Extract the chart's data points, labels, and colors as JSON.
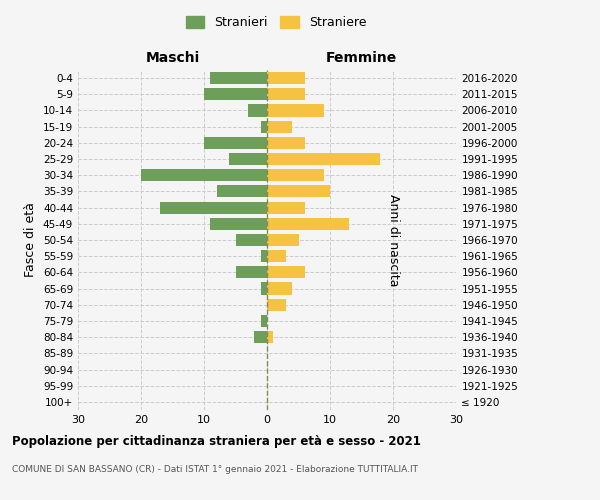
{
  "age_groups": [
    "100+",
    "95-99",
    "90-94",
    "85-89",
    "80-84",
    "75-79",
    "70-74",
    "65-69",
    "60-64",
    "55-59",
    "50-54",
    "45-49",
    "40-44",
    "35-39",
    "30-34",
    "25-29",
    "20-24",
    "15-19",
    "10-14",
    "5-9",
    "0-4"
  ],
  "birth_years": [
    "≤ 1920",
    "1921-1925",
    "1926-1930",
    "1931-1935",
    "1936-1940",
    "1941-1945",
    "1946-1950",
    "1951-1955",
    "1956-1960",
    "1961-1965",
    "1966-1970",
    "1971-1975",
    "1976-1980",
    "1981-1985",
    "1986-1990",
    "1991-1995",
    "1996-2000",
    "2001-2005",
    "2006-2010",
    "2011-2015",
    "2016-2020"
  ],
  "maschi": [
    0,
    0,
    0,
    0,
    2,
    1,
    0,
    1,
    5,
    1,
    5,
    9,
    17,
    8,
    20,
    6,
    10,
    1,
    3,
    10,
    9
  ],
  "femmine": [
    0,
    0,
    0,
    0,
    1,
    0,
    3,
    4,
    6,
    3,
    5,
    13,
    6,
    10,
    9,
    18,
    6,
    4,
    9,
    6,
    6
  ],
  "maschi_color": "#6d9e5a",
  "femmine_color": "#f5c242",
  "background_color": "#f5f5f5",
  "grid_color": "#cccccc",
  "dashed_line_color": "#888855",
  "title": "Popolazione per cittadinanza straniera per età e sesso - 2021",
  "subtitle": "COMUNE DI SAN BASSANO (CR) - Dati ISTAT 1° gennaio 2021 - Elaborazione TUTTITALIA.IT",
  "xlabel_left": "Maschi",
  "xlabel_right": "Femmine",
  "ylabel_left": "Fasce di età",
  "ylabel_right": "Anni di nascita",
  "legend_stranieri": "Stranieri",
  "legend_straniere": "Straniere",
  "xlim": 30,
  "bar_height": 0.75
}
